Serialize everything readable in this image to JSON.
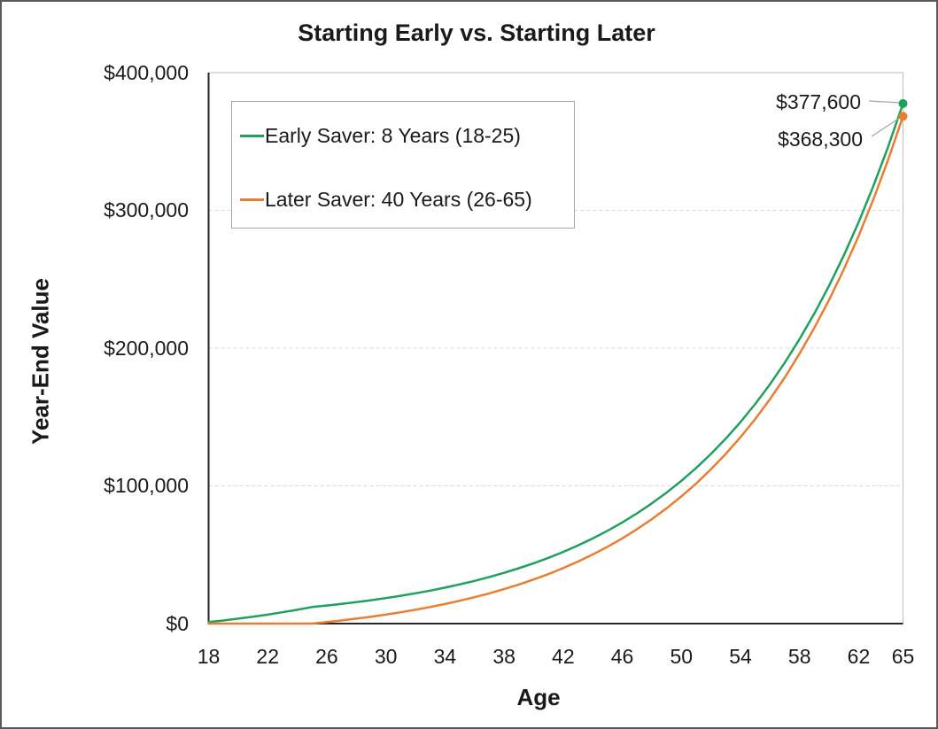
{
  "chart_data": {
    "type": "line",
    "title": "Starting Early vs. Starting Later",
    "xlabel": "Age",
    "ylabel": "Year-End Value",
    "xlim": [
      18,
      65
    ],
    "ylim": [
      0,
      400000
    ],
    "grid": "horizontal-dashed",
    "legend_position": "top-left-inside",
    "x": [
      18,
      19,
      20,
      21,
      22,
      23,
      24,
      25,
      26,
      27,
      28,
      29,
      30,
      31,
      32,
      33,
      34,
      35,
      36,
      37,
      38,
      39,
      40,
      41,
      42,
      43,
      44,
      45,
      46,
      47,
      48,
      49,
      50,
      51,
      52,
      53,
      54,
      55,
      56,
      57,
      58,
      59,
      60,
      61,
      62,
      63,
      64,
      65
    ],
    "x_ticks": [
      18,
      22,
      26,
      30,
      34,
      38,
      42,
      46,
      50,
      54,
      58,
      62,
      65
    ],
    "y_ticks": [
      {
        "value": 0,
        "label": "$0"
      },
      {
        "value": 100000,
        "label": "$100,000"
      },
      {
        "value": 200000,
        "label": "$200,000"
      },
      {
        "value": 300000,
        "label": "$300,000"
      },
      {
        "value": 400000,
        "label": "$400,000"
      }
    ],
    "series": [
      {
        "name": "Early Saver: 8 Years (18-25)",
        "color": "#1EA15D",
        "end_label": "$377,600",
        "end_marker": true,
        "values": [
          1090,
          2278,
          3573,
          4985,
          6523,
          8200,
          10028,
          12021,
          13103,
          14282,
          15568,
          16969,
          18496,
          20161,
          21975,
          23953,
          26108,
          28458,
          31020,
          33811,
          36854,
          40171,
          43786,
          47727,
          52023,
          56705,
          61808,
          67371,
          73434,
          80043,
          87247,
          95100,
          103658,
          112988,
          123157,
          134241,
          146322,
          159491,
          173846,
          189492,
          206546,
          225135,
          245397,
          267483,
          291557,
          317797,
          346398,
          377574
        ]
      },
      {
        "name": "Later Saver: 40 Years (26-65)",
        "color": "#E87E31",
        "end_label": "$368,300",
        "end_marker": true,
        "values": [
          0,
          0,
          0,
          0,
          0,
          0,
          0,
          0,
          1090,
          2278,
          3573,
          4985,
          6523,
          8200,
          10028,
          12021,
          14193,
          16560,
          19141,
          21953,
          25019,
          28361,
          32003,
          35974,
          40301,
          45018,
          50160,
          55765,
          61873,
          68532,
          75790,
          83701,
          92324,
          101723,
          111968,
          123135,
          135308,
          148575,
          163037,
          178800,
          195982,
          214711,
          235125,
          257376,
          281630,
          308066,
          336882,
          368292
        ]
      }
    ],
    "colors": {
      "grid": "#D9D9D9",
      "plot_border": "#BFBFBF",
      "axis": "#262626",
      "legend_border": "#A6A6A6",
      "leader_line": "#A6A6A6",
      "frame_border": "#595959",
      "text": "#1A1A1A"
    }
  }
}
